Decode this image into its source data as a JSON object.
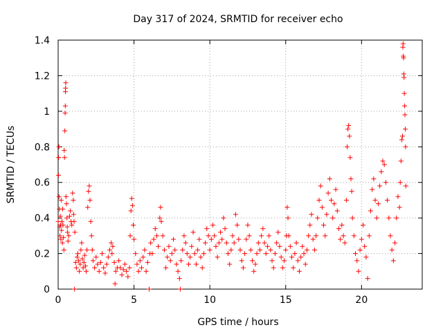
{
  "chart_data": {
    "type": "scatter",
    "title": "Day 317 of 2024, SRMTID for receiver echo",
    "xlabel": "GPS time / hours",
    "ylabel": "SRMTID / TECUs",
    "xlim": [
      0,
      24
    ],
    "ylim": [
      0,
      1.4
    ],
    "xticks": [
      0,
      5,
      10,
      15,
      20
    ],
    "xtick_labels": [
      "0",
      "5",
      "10",
      "15",
      "20"
    ],
    "yticks": [
      0,
      0.2,
      0.4,
      0.6,
      0.8,
      1,
      1.2,
      1.4
    ],
    "ytick_labels": [
      "0",
      "0.2",
      "0.4",
      "0.6",
      "0.8",
      "1",
      "1.2",
      "1.4"
    ],
    "grid": true,
    "marker": "plus",
    "series": [
      {
        "name": "SRMTID",
        "color": "#ff0000",
        "points": [
          [
            0.0,
            0.38
          ],
          [
            0.02,
            0.64
          ],
          [
            0.03,
            0.74
          ],
          [
            0.05,
            0.8
          ],
          [
            0.06,
            0.52
          ],
          [
            0.08,
            0.45
          ],
          [
            0.1,
            0.35
          ],
          [
            0.12,
            0.3
          ],
          [
            0.14,
            0.41
          ],
          [
            0.16,
            0.36
          ],
          [
            0.18,
            0.28
          ],
          [
            0.2,
            0.5
          ],
          [
            0.22,
            0.33
          ],
          [
            0.25,
            0.38
          ],
          [
            0.28,
            0.26
          ],
          [
            0.3,
            0.45
          ],
          [
            0.32,
            0.36
          ],
          [
            0.35,
            0.29
          ],
          [
            0.38,
            0.22
          ],
          [
            0.4,
            0.78
          ],
          [
            0.42,
            0.74
          ],
          [
            0.44,
            0.89
          ],
          [
            0.46,
            0.99
          ],
          [
            0.47,
            1.03
          ],
          [
            0.48,
            1.11
          ],
          [
            0.49,
            1.13
          ],
          [
            0.5,
            1.16
          ],
          [
            0.52,
            0.52
          ],
          [
            0.55,
            0.48
          ],
          [
            0.58,
            0.4
          ],
          [
            0.6,
            0.35
          ],
          [
            0.62,
            0.32
          ],
          [
            0.65,
            0.27
          ],
          [
            0.7,
            0.3
          ],
          [
            0.75,
            0.41
          ],
          [
            0.8,
            0.44
          ],
          [
            0.85,
            0.38
          ],
          [
            0.9,
            0.36
          ],
          [
            0.95,
            0.54
          ],
          [
            1.0,
            0.5
          ],
          [
            1.02,
            0.42
          ],
          [
            1.05,
            0.38
          ],
          [
            1.08,
            0.0
          ],
          [
            1.1,
            0.32
          ],
          [
            1.15,
            0.15
          ],
          [
            1.2,
            0.12
          ],
          [
            1.25,
            0.18
          ],
          [
            1.3,
            0.2
          ],
          [
            1.35,
            0.16
          ],
          [
            1.4,
            0.1
          ],
          [
            1.45,
            0.14
          ],
          [
            1.5,
            0.22
          ],
          [
            1.55,
            0.26
          ],
          [
            1.6,
            0.17
          ],
          [
            1.65,
            0.12
          ],
          [
            1.7,
            0.15
          ],
          [
            1.75,
            0.19
          ],
          [
            1.8,
            0.13
          ],
          [
            1.85,
            0.1
          ],
          [
            1.9,
            0.22
          ],
          [
            1.95,
            0.46
          ],
          [
            2.0,
            0.55
          ],
          [
            2.05,
            0.58
          ],
          [
            2.1,
            0.5
          ],
          [
            2.15,
            0.38
          ],
          [
            2.2,
            0.3
          ],
          [
            2.25,
            0.22
          ],
          [
            2.3,
            0.16
          ],
          [
            2.4,
            0.12
          ],
          [
            2.5,
            0.18
          ],
          [
            2.6,
            0.14
          ],
          [
            2.7,
            0.1
          ],
          [
            2.8,
            0.15
          ],
          [
            2.9,
            0.2
          ],
          [
            3.0,
            0.12
          ],
          [
            3.1,
            0.09
          ],
          [
            3.2,
            0.14
          ],
          [
            3.3,
            0.18
          ],
          [
            3.4,
            0.22
          ],
          [
            3.5,
            0.26
          ],
          [
            3.55,
            0.2
          ],
          [
            3.6,
            0.24
          ],
          [
            3.7,
            0.15
          ],
          [
            3.75,
            0.03
          ],
          [
            3.8,
            0.1
          ],
          [
            3.9,
            0.12
          ],
          [
            4.0,
            0.16
          ],
          [
            4.1,
            0.12
          ],
          [
            4.2,
            0.08
          ],
          [
            4.3,
            0.11
          ],
          [
            4.4,
            0.14
          ],
          [
            4.5,
            0.1
          ],
          [
            4.6,
            0.07
          ],
          [
            4.7,
            0.12
          ],
          [
            4.75,
            0.3
          ],
          [
            4.8,
            0.44
          ],
          [
            4.85,
            0.51
          ],
          [
            4.9,
            0.47
          ],
          [
            4.95,
            0.36
          ],
          [
            5.0,
            0.28
          ],
          [
            5.1,
            0.2
          ],
          [
            5.2,
            0.14
          ],
          [
            5.3,
            0.1
          ],
          [
            5.4,
            0.16
          ],
          [
            5.5,
            0.12
          ],
          [
            5.6,
            0.18
          ],
          [
            5.7,
            0.22
          ],
          [
            5.8,
            0.1
          ],
          [
            5.9,
            0.15
          ],
          [
            6.0,
            0.0
          ],
          [
            6.05,
            0.2
          ],
          [
            6.1,
            0.26
          ],
          [
            6.2,
            0.2
          ],
          [
            6.3,
            0.28
          ],
          [
            6.4,
            0.34
          ],
          [
            6.5,
            0.3
          ],
          [
            6.6,
            0.24
          ],
          [
            6.7,
            0.4
          ],
          [
            6.75,
            0.46
          ],
          [
            6.8,
            0.38
          ],
          [
            6.9,
            0.3
          ],
          [
            7.0,
            0.22
          ],
          [
            7.1,
            0.12
          ],
          [
            7.2,
            0.18
          ],
          [
            7.3,
            0.24
          ],
          [
            7.4,
            0.16
          ],
          [
            7.5,
            0.2
          ],
          [
            7.6,
            0.28
          ],
          [
            7.7,
            0.22
          ],
          [
            7.8,
            0.14
          ],
          [
            7.9,
            0.1
          ],
          [
            8.0,
            0.06
          ],
          [
            8.05,
            0.0
          ],
          [
            8.1,
            0.16
          ],
          [
            8.2,
            0.22
          ],
          [
            8.3,
            0.3
          ],
          [
            8.4,
            0.26
          ],
          [
            8.5,
            0.2
          ],
          [
            8.6,
            0.14
          ],
          [
            8.7,
            0.18
          ],
          [
            8.8,
            0.24
          ],
          [
            8.9,
            0.32
          ],
          [
            9.0,
            0.2
          ],
          [
            9.1,
            0.14
          ],
          [
            9.2,
            0.22
          ],
          [
            9.3,
            0.28
          ],
          [
            9.4,
            0.18
          ],
          [
            9.5,
            0.12
          ],
          [
            9.6,
            0.2
          ],
          [
            9.7,
            0.26
          ],
          [
            9.8,
            0.34
          ],
          [
            9.9,
            0.3
          ],
          [
            10.0,
            0.22
          ],
          [
            10.1,
            0.28
          ],
          [
            10.2,
            0.36
          ],
          [
            10.3,
            0.3
          ],
          [
            10.4,
            0.24
          ],
          [
            10.5,
            0.18
          ],
          [
            10.6,
            0.26
          ],
          [
            10.7,
            0.32
          ],
          [
            10.8,
            0.28
          ],
          [
            10.9,
            0.4
          ],
          [
            11.0,
            0.34
          ],
          [
            11.1,
            0.26
          ],
          [
            11.2,
            0.2
          ],
          [
            11.3,
            0.14
          ],
          [
            11.4,
            0.22
          ],
          [
            11.5,
            0.3
          ],
          [
            11.6,
            0.26
          ],
          [
            11.7,
            0.42
          ],
          [
            11.8,
            0.36
          ],
          [
            11.9,
            0.28
          ],
          [
            12.0,
            0.22
          ],
          [
            12.1,
            0.16
          ],
          [
            12.2,
            0.12
          ],
          [
            12.3,
            0.2
          ],
          [
            12.4,
            0.28
          ],
          [
            12.5,
            0.36
          ],
          [
            12.6,
            0.3
          ],
          [
            12.7,
            0.22
          ],
          [
            12.8,
            0.16
          ],
          [
            12.9,
            0.1
          ],
          [
            13.0,
            0.14
          ],
          [
            13.1,
            0.2
          ],
          [
            13.2,
            0.26
          ],
          [
            13.3,
            0.22
          ],
          [
            13.4,
            0.3
          ],
          [
            13.5,
            0.34
          ],
          [
            13.6,
            0.26
          ],
          [
            13.7,
            0.2
          ],
          [
            13.8,
            0.24
          ],
          [
            13.9,
            0.3
          ],
          [
            14.0,
            0.22
          ],
          [
            14.1,
            0.16
          ],
          [
            14.2,
            0.12
          ],
          [
            14.3,
            0.2
          ],
          [
            14.4,
            0.26
          ],
          [
            14.5,
            0.32
          ],
          [
            14.6,
            0.24
          ],
          [
            14.7,
            0.18
          ],
          [
            14.8,
            0.12
          ],
          [
            14.9,
            0.16
          ],
          [
            15.0,
            0.22
          ],
          [
            15.05,
            0.3
          ],
          [
            15.1,
            0.46
          ],
          [
            15.15,
            0.4
          ],
          [
            15.2,
            0.3
          ],
          [
            15.3,
            0.24
          ],
          [
            15.4,
            0.18
          ],
          [
            15.5,
            0.12
          ],
          [
            15.6,
            0.2
          ],
          [
            15.7,
            0.26
          ],
          [
            15.8,
            0.16
          ],
          [
            15.9,
            0.1
          ],
          [
            16.0,
            0.18
          ],
          [
            16.1,
            0.24
          ],
          [
            16.2,
            0.2
          ],
          [
            16.3,
            0.14
          ],
          [
            16.4,
            0.22
          ],
          [
            16.5,
            0.3
          ],
          [
            16.6,
            0.36
          ],
          [
            16.7,
            0.42
          ],
          [
            16.8,
            0.28
          ],
          [
            16.9,
            0.22
          ],
          [
            17.0,
            0.3
          ],
          [
            17.1,
            0.4
          ],
          [
            17.2,
            0.5
          ],
          [
            17.3,
            0.58
          ],
          [
            17.4,
            0.46
          ],
          [
            17.5,
            0.36
          ],
          [
            17.6,
            0.3
          ],
          [
            17.7,
            0.42
          ],
          [
            17.8,
            0.54
          ],
          [
            17.9,
            0.62
          ],
          [
            18.0,
            0.5
          ],
          [
            18.1,
            0.4
          ],
          [
            18.2,
            0.48
          ],
          [
            18.3,
            0.56
          ],
          [
            18.4,
            0.44
          ],
          [
            18.5,
            0.34
          ],
          [
            18.6,
            0.28
          ],
          [
            18.7,
            0.36
          ],
          [
            18.8,
            0.3
          ],
          [
            18.9,
            0.26
          ],
          [
            19.0,
            0.5
          ],
          [
            19.05,
            0.8
          ],
          [
            19.1,
            0.9
          ],
          [
            19.15,
            0.92
          ],
          [
            19.2,
            0.86
          ],
          [
            19.25,
            0.74
          ],
          [
            19.3,
            0.62
          ],
          [
            19.35,
            0.55
          ],
          [
            19.4,
            0.4
          ],
          [
            19.5,
            0.3
          ],
          [
            19.6,
            0.2
          ],
          [
            19.7,
            0.16
          ],
          [
            19.8,
            0.1
          ],
          [
            19.9,
            0.22
          ],
          [
            20.0,
            0.28
          ],
          [
            20.1,
            0.36
          ],
          [
            20.2,
            0.24
          ],
          [
            20.3,
            0.18
          ],
          [
            20.4,
            0.06
          ],
          [
            20.5,
            0.3
          ],
          [
            20.6,
            0.44
          ],
          [
            20.7,
            0.56
          ],
          [
            20.8,
            0.62
          ],
          [
            20.9,
            0.5
          ],
          [
            21.0,
            0.4
          ],
          [
            21.1,
            0.48
          ],
          [
            21.2,
            0.58
          ],
          [
            21.3,
            0.66
          ],
          [
            21.4,
            0.72
          ],
          [
            21.5,
            0.7
          ],
          [
            21.6,
            0.6
          ],
          [
            21.7,
            0.5
          ],
          [
            21.8,
            0.4
          ],
          [
            21.9,
            0.3
          ],
          [
            22.0,
            0.22
          ],
          [
            22.1,
            0.16
          ],
          [
            22.2,
            0.26
          ],
          [
            22.3,
            0.4
          ],
          [
            22.4,
            0.52
          ],
          [
            22.5,
            0.46
          ],
          [
            22.55,
            0.6
          ],
          [
            22.6,
            0.72
          ],
          [
            22.65,
            0.84
          ],
          [
            22.7,
            0.86
          ],
          [
            22.72,
            1.36
          ],
          [
            22.74,
            1.38
          ],
          [
            22.75,
            1.31
          ],
          [
            22.77,
            1.3
          ],
          [
            22.78,
            1.21
          ],
          [
            22.8,
            1.19
          ],
          [
            22.82,
            1.1
          ],
          [
            22.84,
            1.03
          ],
          [
            22.86,
            0.98
          ],
          [
            22.88,
            0.9
          ],
          [
            22.9,
            0.8
          ],
          [
            22.92,
            0.58
          ]
        ]
      }
    ]
  }
}
